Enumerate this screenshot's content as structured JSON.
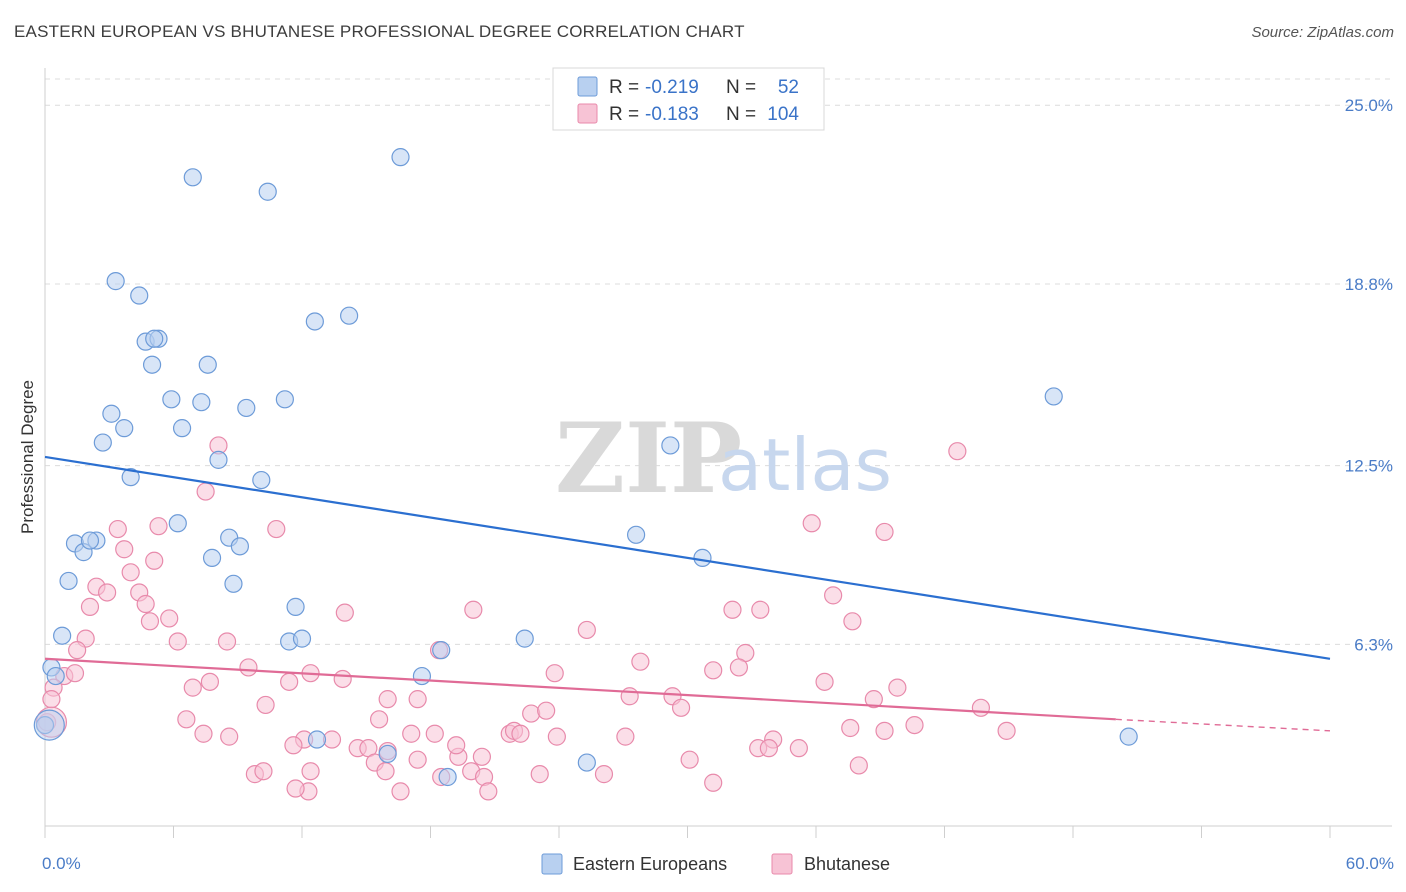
{
  "title": "EASTERN EUROPEAN VS BHUTANESE PROFESSIONAL DEGREE CORRELATION CHART",
  "source": "Source: ZipAtlas.com",
  "watermark": {
    "zip": "ZIP",
    "atlas": "atlas"
  },
  "colors": {
    "blue_fill": "#b8d0f0",
    "blue_stroke": "#6d9bd8",
    "blue_line": "#2b6fd0",
    "pink_fill": "#f7c3d5",
    "pink_stroke": "#e88aab",
    "pink_line": "#e06b96",
    "grid": "#dcdcdc",
    "axis_text": "#4a7cc7"
  },
  "legend": {
    "rows": [
      {
        "r_label": "R =",
        "r_value": "-0.219",
        "n_label": "N =",
        "n_value": "52"
      },
      {
        "r_label": "R =",
        "r_value": "-0.183",
        "n_label": "N =",
        "n_value": "104"
      }
    ]
  },
  "bottom_legend": [
    "Eastern Europeans",
    "Bhutanese"
  ],
  "chart_data": {
    "type": "scatter",
    "xlabel": "",
    "ylabel": "Professional Degree",
    "xlim": [
      0,
      60
    ],
    "ylim": [
      0,
      26.5
    ],
    "x_tick_labels": [
      {
        "value": 0,
        "label": "0.0%"
      },
      {
        "value": 60,
        "label": "60.0%"
      }
    ],
    "y_tick_labels": [
      {
        "value": 6.3,
        "label": "6.3%"
      },
      {
        "value": 12.5,
        "label": "12.5%"
      },
      {
        "value": 18.8,
        "label": "18.8%"
      },
      {
        "value": 25.0,
        "label": "25.0%"
      }
    ],
    "grid": true,
    "legend_position": "top-center",
    "series": [
      {
        "name": "Eastern Europeans",
        "trend": {
          "x0": 0,
          "y0": 12.8,
          "x1": 60,
          "y1": 5.8
        },
        "points": [
          [
            16.6,
            23.2
          ],
          [
            6.9,
            22.5
          ],
          [
            10.4,
            22.0
          ],
          [
            3.3,
            18.9
          ],
          [
            4.4,
            18.4
          ],
          [
            12.6,
            17.5
          ],
          [
            14.2,
            17.7
          ],
          [
            4.7,
            16.8
          ],
          [
            5.3,
            16.9
          ],
          [
            5.1,
            16.9
          ],
          [
            5.0,
            16.0
          ],
          [
            7.6,
            16.0
          ],
          [
            5.9,
            14.8
          ],
          [
            7.3,
            14.7
          ],
          [
            9.4,
            14.5
          ],
          [
            11.2,
            14.8
          ],
          [
            3.1,
            14.3
          ],
          [
            3.7,
            13.8
          ],
          [
            6.4,
            13.8
          ],
          [
            2.7,
            13.3
          ],
          [
            8.1,
            12.7
          ],
          [
            4.0,
            12.1
          ],
          [
            10.1,
            12.0
          ],
          [
            6.2,
            10.5
          ],
          [
            27.6,
            10.1
          ],
          [
            1.4,
            9.8
          ],
          [
            2.4,
            9.9
          ],
          [
            1.8,
            9.5
          ],
          [
            2.1,
            9.9
          ],
          [
            8.6,
            10.0
          ],
          [
            9.1,
            9.7
          ],
          [
            7.8,
            9.3
          ],
          [
            30.7,
            9.3
          ],
          [
            1.1,
            8.5
          ],
          [
            8.8,
            8.4
          ],
          [
            11.7,
            7.6
          ],
          [
            0.8,
            6.6
          ],
          [
            11.4,
            6.4
          ],
          [
            12.0,
            6.5
          ],
          [
            17.6,
            5.2
          ],
          [
            0.3,
            5.5
          ],
          [
            0.5,
            5.2
          ],
          [
            18.5,
            6.1
          ],
          [
            22.4,
            6.5
          ],
          [
            29.2,
            13.2
          ],
          [
            47.1,
            14.9
          ],
          [
            12.7,
            3.0
          ],
          [
            16.0,
            2.5
          ],
          [
            18.8,
            1.7
          ],
          [
            25.3,
            2.2
          ],
          [
            50.6,
            3.1
          ],
          [
            0.0,
            3.5
          ]
        ]
      },
      {
        "name": "Bhutanese",
        "trend": {
          "x0": 0,
          "y0": 5.8,
          "x1": 50,
          "y1": 3.7,
          "dash_to": {
            "x": 60,
            "y": 3.3
          }
        },
        "points": [
          [
            8.1,
            13.2
          ],
          [
            42.6,
            13.0
          ],
          [
            7.5,
            11.6
          ],
          [
            3.4,
            10.3
          ],
          [
            5.3,
            10.4
          ],
          [
            10.8,
            10.3
          ],
          [
            35.8,
            10.5
          ],
          [
            39.2,
            10.2
          ],
          [
            3.7,
            9.6
          ],
          [
            5.1,
            9.2
          ],
          [
            4.0,
            8.8
          ],
          [
            2.4,
            8.3
          ],
          [
            2.9,
            8.1
          ],
          [
            4.4,
            8.1
          ],
          [
            36.8,
            8.0
          ],
          [
            2.1,
            7.6
          ],
          [
            4.7,
            7.7
          ],
          [
            14.0,
            7.4
          ],
          [
            20.0,
            7.5
          ],
          [
            32.1,
            7.5
          ],
          [
            33.4,
            7.5
          ],
          [
            5.8,
            7.2
          ],
          [
            4.9,
            7.1
          ],
          [
            37.7,
            7.1
          ],
          [
            25.3,
            6.8
          ],
          [
            1.9,
            6.5
          ],
          [
            6.2,
            6.4
          ],
          [
            8.5,
            6.4
          ],
          [
            1.5,
            6.1
          ],
          [
            18.4,
            6.1
          ],
          [
            32.7,
            6.0
          ],
          [
            0.9,
            5.2
          ],
          [
            1.4,
            5.3
          ],
          [
            9.5,
            5.5
          ],
          [
            12.4,
            5.3
          ],
          [
            23.8,
            5.3
          ],
          [
            27.8,
            5.7
          ],
          [
            31.2,
            5.4
          ],
          [
            32.4,
            5.5
          ],
          [
            0.4,
            4.8
          ],
          [
            6.9,
            4.8
          ],
          [
            7.7,
            5.0
          ],
          [
            11.4,
            5.0
          ],
          [
            13.9,
            5.1
          ],
          [
            16.0,
            4.4
          ],
          [
            17.4,
            4.4
          ],
          [
            27.3,
            4.5
          ],
          [
            29.3,
            4.5
          ],
          [
            36.4,
            5.0
          ],
          [
            38.7,
            4.4
          ],
          [
            39.8,
            4.8
          ],
          [
            10.3,
            4.2
          ],
          [
            22.7,
            3.9
          ],
          [
            23.4,
            4.0
          ],
          [
            29.7,
            4.1
          ],
          [
            43.7,
            4.1
          ],
          [
            6.6,
            3.7
          ],
          [
            15.6,
            3.7
          ],
          [
            40.6,
            3.5
          ],
          [
            7.4,
            3.2
          ],
          [
            8.6,
            3.1
          ],
          [
            17.1,
            3.2
          ],
          [
            18.2,
            3.2
          ],
          [
            21.7,
            3.2
          ],
          [
            21.9,
            3.3
          ],
          [
            23.9,
            3.1
          ],
          [
            27.1,
            3.1
          ],
          [
            34.0,
            3.0
          ],
          [
            37.6,
            3.4
          ],
          [
            39.2,
            3.3
          ],
          [
            44.9,
            3.3
          ],
          [
            12.1,
            3.0
          ],
          [
            13.4,
            3.0
          ],
          [
            11.6,
            2.8
          ],
          [
            14.6,
            2.7
          ],
          [
            15.1,
            2.7
          ],
          [
            16.0,
            2.6
          ],
          [
            33.3,
            2.7
          ],
          [
            33.8,
            2.7
          ],
          [
            35.2,
            2.7
          ],
          [
            15.4,
            2.2
          ],
          [
            17.4,
            2.3
          ],
          [
            19.3,
            2.4
          ],
          [
            20.4,
            2.4
          ],
          [
            30.1,
            2.3
          ],
          [
            38.0,
            2.1
          ],
          [
            9.8,
            1.8
          ],
          [
            10.2,
            1.9
          ],
          [
            12.4,
            1.9
          ],
          [
            15.9,
            1.9
          ],
          [
            18.5,
            1.7
          ],
          [
            19.9,
            1.9
          ],
          [
            20.5,
            1.7
          ],
          [
            23.1,
            1.8
          ],
          [
            26.1,
            1.8
          ],
          [
            31.2,
            1.5
          ],
          [
            12.3,
            1.2
          ],
          [
            16.6,
            1.2
          ],
          [
            20.7,
            1.2
          ],
          [
            11.7,
            1.3
          ],
          [
            0.3,
            4.4
          ],
          [
            0.1,
            3.6
          ],
          [
            22.2,
            3.2
          ],
          [
            19.2,
            2.8
          ]
        ]
      }
    ]
  }
}
